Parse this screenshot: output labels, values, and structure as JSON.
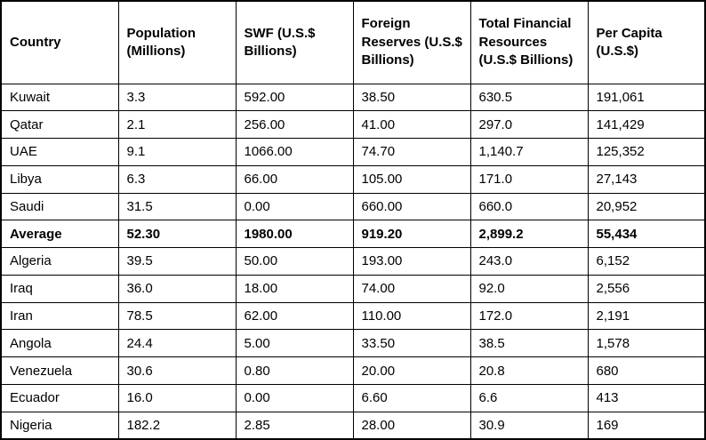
{
  "chart_data": {
    "type": "table",
    "columns": [
      "Country",
      "Population (Millions)",
      "SWF (U.S.$ Billions)",
      "Foreign Reserves (U.S.$ Billions)",
      "Total Financial Resources (U.S.$ Billions)",
      "Per Capita (U.S.$)"
    ],
    "rows": [
      {
        "bold": false,
        "cells": [
          "Kuwait",
          "3.3",
          "592.00",
          "38.50",
          "630.5",
          "191,061"
        ]
      },
      {
        "bold": false,
        "cells": [
          "Qatar",
          "2.1",
          "256.00",
          "41.00",
          "297.0",
          "141,429"
        ]
      },
      {
        "bold": false,
        "cells": [
          "UAE",
          "9.1",
          "1066.00",
          "74.70",
          "1,140.7",
          "125,352"
        ]
      },
      {
        "bold": false,
        "cells": [
          "Libya",
          "6.3",
          "66.00",
          "105.00",
          "171.0",
          "27,143"
        ]
      },
      {
        "bold": false,
        "cells": [
          "Saudi",
          "31.5",
          "0.00",
          "660.00",
          "660.0",
          "20,952"
        ]
      },
      {
        "bold": true,
        "cells": [
          "Average",
          "52.30",
          "1980.00",
          "919.20",
          "2,899.2",
          "55,434"
        ]
      },
      {
        "bold": false,
        "cells": [
          "Algeria",
          "39.5",
          "50.00",
          "193.00",
          "243.0",
          "6,152"
        ]
      },
      {
        "bold": false,
        "cells": [
          "Iraq",
          "36.0",
          "18.00",
          "74.00",
          "92.0",
          "2,556"
        ]
      },
      {
        "bold": false,
        "cells": [
          "Iran",
          "78.5",
          "62.00",
          "110.00",
          "172.0",
          "2,191"
        ]
      },
      {
        "bold": false,
        "cells": [
          "Angola",
          "24.4",
          "5.00",
          "33.50",
          "38.5",
          "1,578"
        ]
      },
      {
        "bold": false,
        "cells": [
          "Venezuela",
          "30.6",
          "0.80",
          "20.00",
          "20.8",
          "680"
        ]
      },
      {
        "bold": false,
        "cells": [
          "Ecuador",
          "16.0",
          "0.00",
          "6.60",
          "6.6",
          "413"
        ]
      },
      {
        "bold": false,
        "cells": [
          "Nigeria",
          "182.2",
          "2.85",
          "28.00",
          "30.9",
          "169"
        ]
      }
    ],
    "styling": {
      "border_color": "#000000",
      "text_color": "#000000",
      "background_color": "#ffffff"
    }
  }
}
